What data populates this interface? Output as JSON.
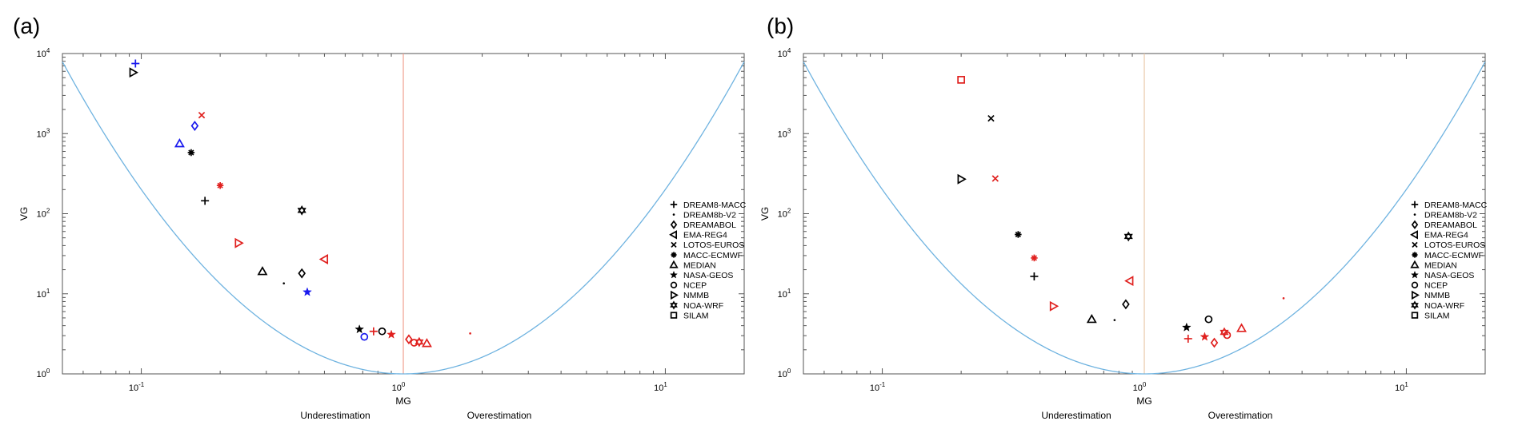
{
  "chart_data": [
    {
      "type": "scatter",
      "panel_label": "(a)",
      "xlabel": "MG",
      "ylabel": "VG",
      "xscale": "log",
      "yscale": "log",
      "xlim": [
        0.05,
        20
      ],
      "ylim": [
        1,
        10000
      ],
      "x_tick_labels": [
        {
          "base": "10",
          "exp": "-1"
        },
        {
          "base": "10",
          "exp": "0"
        },
        {
          "base": "10",
          "exp": "1"
        }
      ],
      "y_tick_labels": [
        {
          "base": "10",
          "exp": "0"
        },
        {
          "base": "10",
          "exp": "1"
        },
        {
          "base": "10",
          "exp": "2"
        },
        {
          "base": "10",
          "exp": "3"
        },
        {
          "base": "10",
          "exp": "4"
        }
      ],
      "region_labels": {
        "left": "Underestimation",
        "right": "Overestimation"
      },
      "reference_line": {
        "x": 1.0,
        "color": "#f0a090"
      },
      "curve": {
        "description": "VG = exp((ln MG)^2)",
        "color": "#6fb3e0"
      },
      "legend_position": "right",
      "legend": [
        {
          "name": "DREAM8-MACC",
          "marker": "plus"
        },
        {
          "name": "DREAM8b-V2",
          "marker": "dot"
        },
        {
          "name": "DREAMABOL",
          "marker": "diamond"
        },
        {
          "name": "EMA-REG4",
          "marker": "triangle-left"
        },
        {
          "name": "LOTOS-EUROS",
          "marker": "x"
        },
        {
          "name": "MACC-ECMWF",
          "marker": "asterisk"
        },
        {
          "name": "MEDIAN",
          "marker": "triangle-up"
        },
        {
          "name": "NASA-GEOS",
          "marker": "star"
        },
        {
          "name": "NCEP",
          "marker": "circle"
        },
        {
          "name": "NMMB",
          "marker": "triangle-right"
        },
        {
          "name": "NOA-WRF",
          "marker": "hexagram"
        },
        {
          "name": "SILAM",
          "marker": "square"
        }
      ],
      "points": [
        {
          "model": "DREAM8-MACC",
          "color": "#1a1aee",
          "x": 0.095,
          "y": 7500
        },
        {
          "model": "NMMB",
          "color": "#000000",
          "x": 0.093,
          "y": 5800
        },
        {
          "model": "LOTOS-EUROS",
          "color": "#e0201e",
          "x": 0.17,
          "y": 1700
        },
        {
          "model": "DREAMABOL",
          "color": "#1a1aee",
          "x": 0.16,
          "y": 1250
        },
        {
          "model": "MEDIAN",
          "color": "#1a1aee",
          "x": 0.14,
          "y": 750
        },
        {
          "model": "MACC-ECMWF",
          "color": "#000000",
          "x": 0.155,
          "y": 580
        },
        {
          "model": "MACC-ECMWF",
          "color": "#e0201e",
          "x": 0.2,
          "y": 225
        },
        {
          "model": "DREAM8-MACC",
          "color": "#000000",
          "x": 0.175,
          "y": 145
        },
        {
          "model": "NOA-WRF",
          "color": "#000000",
          "x": 0.41,
          "y": 110
        },
        {
          "model": "NMMB",
          "color": "#e0201e",
          "x": 0.235,
          "y": 43
        },
        {
          "model": "EMA-REG4",
          "color": "#e0201e",
          "x": 0.5,
          "y": 27
        },
        {
          "model": "MEDIAN",
          "color": "#000000",
          "x": 0.29,
          "y": 19
        },
        {
          "model": "DREAMABOL",
          "color": "#000000",
          "x": 0.41,
          "y": 18
        },
        {
          "model": "DREAM8b-V2",
          "color": "#000000",
          "x": 0.35,
          "y": 13.5
        },
        {
          "model": "NASA-GEOS",
          "color": "#1a1aee",
          "x": 0.43,
          "y": 10.5
        },
        {
          "model": "NASA-GEOS",
          "color": "#000000",
          "x": 0.68,
          "y": 3.6
        },
        {
          "model": "NCEP",
          "color": "#000000",
          "x": 0.83,
          "y": 3.4
        },
        {
          "model": "DREAM8-MACC",
          "color": "#e0201e",
          "x": 0.77,
          "y": 3.4
        },
        {
          "model": "NCEP",
          "color": "#1a1aee",
          "x": 0.71,
          "y": 2.9
        },
        {
          "model": "NASA-GEOS",
          "color": "#e0201e",
          "x": 0.9,
          "y": 3.1
        },
        {
          "model": "DREAMABOL",
          "color": "#e0201e",
          "x": 1.05,
          "y": 2.7
        },
        {
          "model": "NCEP",
          "color": "#e0201e",
          "x": 1.1,
          "y": 2.45
        },
        {
          "model": "NOA-WRF",
          "color": "#e0201e",
          "x": 1.15,
          "y": 2.5
        },
        {
          "model": "MEDIAN",
          "color": "#e0201e",
          "x": 1.23,
          "y": 2.4
        },
        {
          "model": "DREAM8b-V2",
          "color": "#e0201e",
          "x": 1.8,
          "y": 3.2
        }
      ]
    },
    {
      "type": "scatter",
      "panel_label": "(b)",
      "xlabel": "MG",
      "ylabel": "VG",
      "xscale": "log",
      "yscale": "log",
      "xlim": [
        0.05,
        20
      ],
      "ylim": [
        1,
        10000
      ],
      "x_tick_labels": [
        {
          "base": "10",
          "exp": "-1"
        },
        {
          "base": "10",
          "exp": "0"
        },
        {
          "base": "10",
          "exp": "1"
        }
      ],
      "y_tick_labels": [
        {
          "base": "10",
          "exp": "0"
        },
        {
          "base": "10",
          "exp": "1"
        },
        {
          "base": "10",
          "exp": "2"
        },
        {
          "base": "10",
          "exp": "3"
        },
        {
          "base": "10",
          "exp": "4"
        }
      ],
      "region_labels": {
        "left": "Underestimation",
        "right": "Overestimation"
      },
      "reference_line": {
        "x": 1.0,
        "color": "#e8c8a8"
      },
      "curve": {
        "description": "VG = exp((ln MG)^2)",
        "color": "#6fb3e0"
      },
      "legend_position": "right",
      "legend": [
        {
          "name": "DREAM8-MACC",
          "marker": "plus"
        },
        {
          "name": "DREAM8b-V2",
          "marker": "dot"
        },
        {
          "name": "DREAMABOL",
          "marker": "diamond"
        },
        {
          "name": "EMA-REG4",
          "marker": "triangle-left"
        },
        {
          "name": "LOTOS-EUROS",
          "marker": "x"
        },
        {
          "name": "MACC-ECMWF",
          "marker": "asterisk"
        },
        {
          "name": "MEDIAN",
          "marker": "triangle-up"
        },
        {
          "name": "NASA-GEOS",
          "marker": "star"
        },
        {
          "name": "NCEP",
          "marker": "circle"
        },
        {
          "name": "NMMB",
          "marker": "triangle-right"
        },
        {
          "name": "NOA-WRF",
          "marker": "hexagram"
        },
        {
          "name": "SILAM",
          "marker": "square"
        }
      ],
      "points": [
        {
          "model": "SILAM",
          "color": "#e0201e",
          "x": 0.2,
          "y": 4700
        },
        {
          "model": "LOTOS-EUROS",
          "color": "#000000",
          "x": 0.26,
          "y": 1550
        },
        {
          "model": "NMMB",
          "color": "#000000",
          "x": 0.2,
          "y": 270
        },
        {
          "model": "LOTOS-EUROS",
          "color": "#e0201e",
          "x": 0.27,
          "y": 275
        },
        {
          "model": "MACC-ECMWF",
          "color": "#000000",
          "x": 0.33,
          "y": 55
        },
        {
          "model": "NOA-WRF",
          "color": "#000000",
          "x": 0.87,
          "y": 52
        },
        {
          "model": "MACC-ECMWF",
          "color": "#e0201e",
          "x": 0.38,
          "y": 28
        },
        {
          "model": "DREAM8-MACC",
          "color": "#000000",
          "x": 0.38,
          "y": 16.5
        },
        {
          "model": "EMA-REG4",
          "color": "#e0201e",
          "x": 0.88,
          "y": 14.5
        },
        {
          "model": "NMMB",
          "color": "#e0201e",
          "x": 0.45,
          "y": 7
        },
        {
          "model": "DREAMABOL",
          "color": "#000000",
          "x": 0.85,
          "y": 7.4
        },
        {
          "model": "MEDIAN",
          "color": "#000000",
          "x": 0.63,
          "y": 4.8
        },
        {
          "model": "DREAM8b-V2",
          "color": "#000000",
          "x": 0.77,
          "y": 4.7
        },
        {
          "model": "NCEP",
          "color": "#000000",
          "x": 1.76,
          "y": 4.8
        },
        {
          "model": "NASA-GEOS",
          "color": "#000000",
          "x": 1.45,
          "y": 3.8
        },
        {
          "model": "MEDIAN",
          "color": "#e0201e",
          "x": 2.35,
          "y": 3.7
        },
        {
          "model": "NOA-WRF",
          "color": "#e0201e",
          "x": 2.02,
          "y": 3.3
        },
        {
          "model": "NCEP",
          "color": "#e0201e",
          "x": 2.07,
          "y": 3.05
        },
        {
          "model": "NASA-GEOS",
          "color": "#e0201e",
          "x": 1.7,
          "y": 2.9
        },
        {
          "model": "DREAM8-MACC",
          "color": "#e0201e",
          "x": 1.47,
          "y": 2.75
        },
        {
          "model": "DREAMABOL",
          "color": "#e0201e",
          "x": 1.85,
          "y": 2.45
        },
        {
          "model": "DREAM8b-V2",
          "color": "#e0201e",
          "x": 3.4,
          "y": 8.8
        }
      ]
    }
  ]
}
